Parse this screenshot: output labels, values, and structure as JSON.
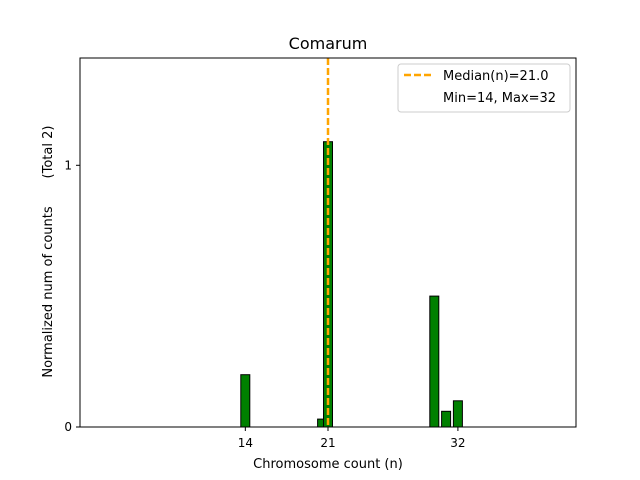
{
  "chart_data": {
    "type": "bar",
    "title": "Comarum",
    "xlabel": "Chromosome count (n)",
    "ylabel": "Normalized num of counts",
    "ylabel_total": "(Total 2)",
    "xlim": [
      0,
      42
    ],
    "ylim": [
      0,
      1.41
    ],
    "x_ticks": [
      14,
      21,
      32
    ],
    "y_ticks": [
      0,
      1
    ],
    "bars": [
      {
        "x": 14,
        "value": 0.2
      },
      {
        "x": 20.5,
        "value": 0.03
      },
      {
        "x": 21,
        "value": 1.09
      },
      {
        "x": 30,
        "value": 0.5
      },
      {
        "x": 31,
        "value": 0.06
      },
      {
        "x": 32,
        "value": 0.1
      }
    ],
    "bar_color": "#008000",
    "median": {
      "value": 21.0,
      "label": "Median(n)=21.0",
      "color": "#FFA500"
    },
    "legend": {
      "position": "top-right",
      "extra_label": "Min=14, Max=32"
    }
  }
}
